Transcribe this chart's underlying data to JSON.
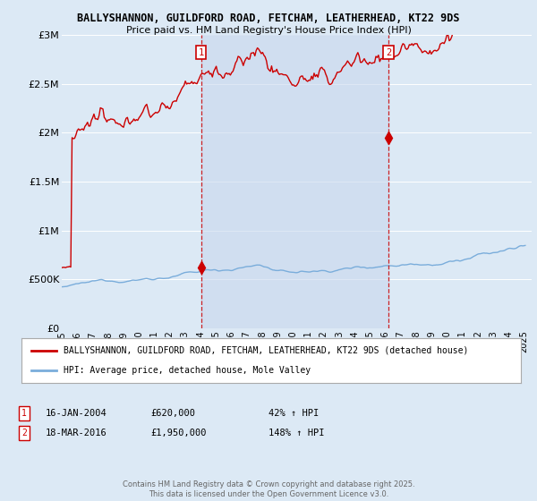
{
  "title_line1": "BALLYSHANNON, GUILDFORD ROAD, FETCHAM, LEATHERHEAD, KT22 9DS",
  "title_line2": "Price paid vs. HM Land Registry's House Price Index (HPI)",
  "bg_color": "#dce9f5",
  "plot_bg_color": "#dce9f5",
  "ylim": [
    0,
    3000000
  ],
  "yticks": [
    0,
    500000,
    1000000,
    1500000,
    2000000,
    2500000,
    3000000
  ],
  "ytick_labels": [
    "£0",
    "£500K",
    "£1M",
    "£1.5M",
    "£2M",
    "£2.5M",
    "£3M"
  ],
  "xstart_year": 1995,
  "xend_year": 2025,
  "legend_house_label": "BALLYSHANNON, GUILDFORD ROAD, FETCHAM, LEATHERHEAD, KT22 9DS (detached house)",
  "legend_hpi_label": "HPI: Average price, detached house, Mole Valley",
  "house_color": "#cc0000",
  "hpi_color": "#7aaddb",
  "vline_color": "#cc0000",
  "shade_color": "#c8d8ee",
  "marker1_date": 2004.04,
  "marker1_price": 620000,
  "marker1_label": "1",
  "marker2_date": 2016.21,
  "marker2_price": 1950000,
  "marker2_label": "2",
  "footnote_line1": "Contains HM Land Registry data © Crown copyright and database right 2025.",
  "footnote_line2": "This data is licensed under the Open Government Licence v3.0.",
  "grid_color": "#ffffff",
  "note1_date": "16-JAN-2004",
  "note1_price": "£620,000",
  "note1_pct": "42% ↑ HPI",
  "note2_date": "18-MAR-2016",
  "note2_price": "£1,950,000",
  "note2_pct": "148% ↑ HPI"
}
